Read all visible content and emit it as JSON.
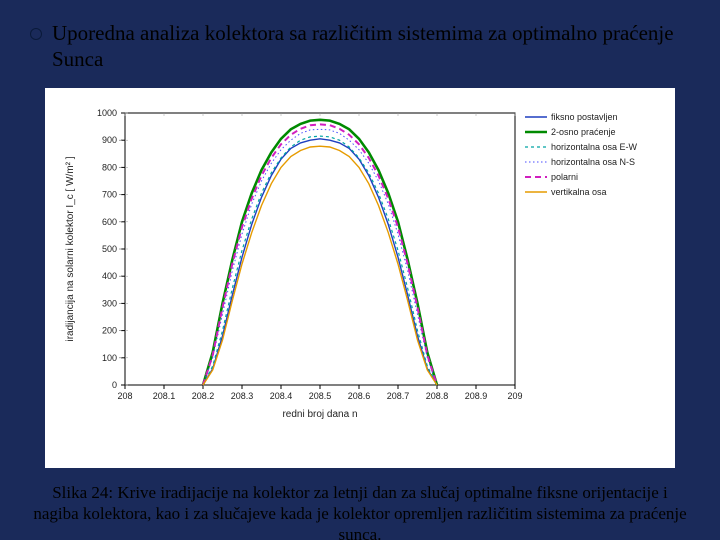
{
  "title": "Uporedna analiza kolektora sa različitim sistemima za optimalno praćenje Sunca",
  "caption": "Slika 24: Krive iradijacije na kolektor za letnji dan za slučaj optimalne fiksne orijentacije i nagiba kolektora, kao i za slučajeve kada je kolektor opremljen različitim sistemima za praćenje sunca.",
  "chart": {
    "type": "line",
    "background_color": "#ffffff",
    "plot_background": "#ffffff",
    "xlabel": "redni broj dana  n",
    "ylabel": "iradijancija na solarni kolektor  I_c  [ W/m² ]",
    "label_fontsize": 10,
    "tick_fontsize": 9,
    "legend_fontsize": 9,
    "xlim": [
      208.0,
      209.0
    ],
    "ylim": [
      0,
      1000
    ],
    "xtick_step": 0.1,
    "ytick_step": 100,
    "grid_color": "#e6e6e6",
    "axis_color": "#000000",
    "curve_x": [
      208.2,
      208.225,
      208.25,
      208.275,
      208.3,
      208.325,
      208.35,
      208.375,
      208.4,
      208.425,
      208.45,
      208.475,
      208.5,
      208.525,
      208.55,
      208.575,
      208.6,
      208.625,
      208.65,
      208.675,
      208.7,
      208.725,
      208.75,
      208.775,
      208.8
    ],
    "series": [
      {
        "name": "fiksno postavljen",
        "color": "#1f3fbf",
        "width": 1.4,
        "dash": "",
        "y": [
          0,
          60,
          180,
          330,
          470,
          590,
          690,
          770,
          830,
          870,
          890,
          900,
          905,
          900,
          890,
          870,
          830,
          770,
          690,
          590,
          470,
          330,
          180,
          60,
          0
        ]
      },
      {
        "name": "2-osno praćenje",
        "color": "#008a00",
        "width": 2.6,
        "dash": "",
        "y": [
          0,
          120,
          300,
          460,
          600,
          705,
          790,
          855,
          905,
          940,
          960,
          972,
          975,
          972,
          960,
          940,
          905,
          855,
          790,
          705,
          600,
          460,
          300,
          120,
          0
        ]
      },
      {
        "name": "horizontalna osa E-W",
        "color": "#00a5a5",
        "width": 1.2,
        "dash": "3,3",
        "y": [
          0,
          70,
          200,
          355,
          495,
          610,
          705,
          780,
          835,
          875,
          900,
          912,
          915,
          912,
          900,
          875,
          835,
          780,
          705,
          610,
          495,
          355,
          200,
          70,
          0
        ]
      },
      {
        "name": "horizontalna osa N-S",
        "color": "#4a4dff",
        "width": 1.0,
        "dash": "1.5,2.5",
        "y": [
          0,
          100,
          260,
          420,
          555,
          665,
          750,
          815,
          865,
          900,
          925,
          938,
          940,
          938,
          925,
          900,
          865,
          815,
          750,
          665,
          555,
          420,
          260,
          100,
          0
        ]
      },
      {
        "name": "polarni",
        "color": "#d11fbf",
        "width": 2.0,
        "dash": "6,4",
        "y": [
          0,
          110,
          285,
          445,
          580,
          685,
          770,
          835,
          885,
          920,
          942,
          955,
          958,
          955,
          942,
          920,
          885,
          835,
          770,
          685,
          580,
          445,
          285,
          110,
          0
        ]
      },
      {
        "name": "vertikalna osa",
        "color": "#e69b00",
        "width": 1.4,
        "dash": "",
        "y": [
          0,
          55,
          165,
          310,
          445,
          560,
          660,
          740,
          800,
          840,
          862,
          875,
          878,
          875,
          862,
          840,
          800,
          740,
          660,
          560,
          445,
          310,
          165,
          55,
          0
        ]
      }
    ]
  }
}
